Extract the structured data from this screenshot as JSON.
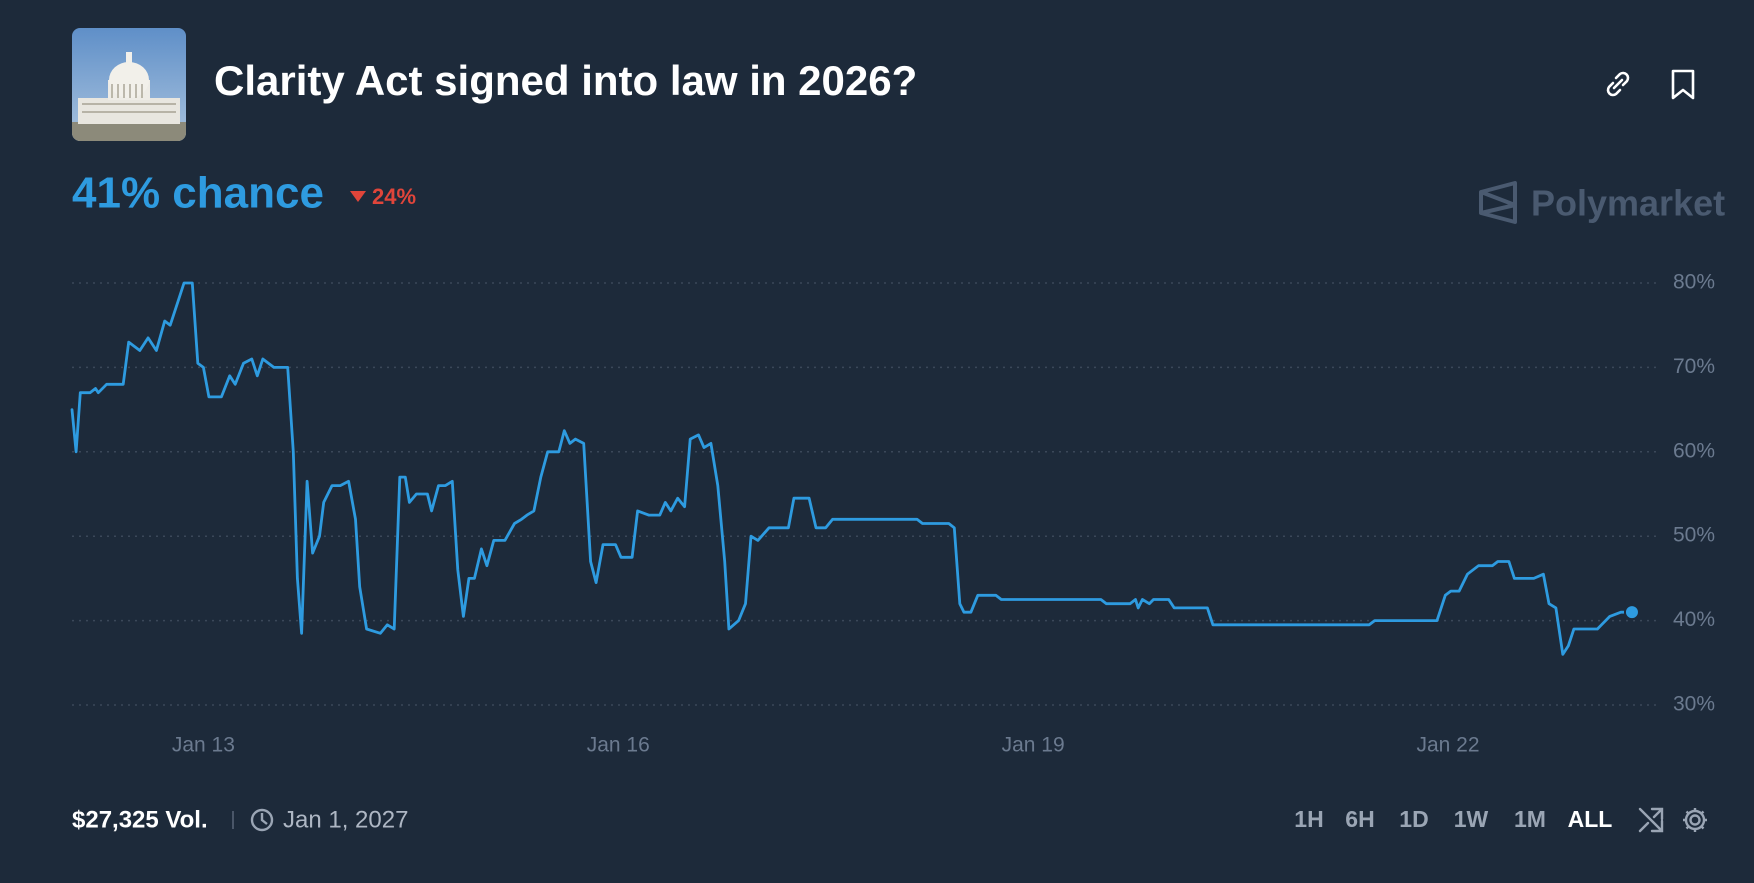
{
  "header": {
    "title": "Clarity Act signed into law in 2026?",
    "probability": "41% chance",
    "change": "24%",
    "brand": "Polymarket"
  },
  "chart_data": {
    "type": "line",
    "color": "#2e9be0",
    "grid": true,
    "x": [
      12.05,
      12.08,
      12.11,
      12.18,
      12.22,
      12.24,
      12.3,
      12.42,
      12.46,
      12.54,
      12.6,
      12.66,
      12.72,
      12.76,
      12.82,
      12.86,
      12.92,
      12.96,
      13.0,
      13.04,
      13.13,
      13.19,
      13.23,
      13.29,
      13.35,
      13.39,
      13.43,
      13.51,
      13.61,
      13.65,
      13.68,
      13.71,
      13.75,
      13.79,
      13.84,
      13.87,
      13.93,
      13.99,
      14.05,
      14.1,
      14.13,
      14.18,
      14.28,
      14.33,
      14.38,
      14.42,
      14.46,
      14.49,
      14.54,
      14.62,
      14.65,
      14.7,
      14.75,
      14.8,
      14.84,
      14.88,
      14.92,
      14.96,
      15.01,
      15.05,
      15.1,
      15.18,
      15.25,
      15.3,
      15.34,
      15.39,
      15.44,
      15.49,
      15.57,
      15.61,
      15.65,
      15.69,
      15.75,
      15.8,
      15.84,
      15.89,
      15.98,
      16.02,
      16.1,
      16.14,
      16.22,
      16.3,
      16.34,
      16.38,
      16.43,
      16.48,
      16.52,
      16.58,
      16.62,
      16.67,
      16.72,
      16.77,
      16.8,
      16.87,
      16.92,
      16.96,
      17.01,
      17.09,
      17.23,
      17.27,
      17.38,
      17.43,
      17.5,
      17.55,
      18.16,
      18.2,
      18.39,
      18.43,
      18.47,
      18.5,
      18.55,
      18.6,
      18.73,
      18.77,
      19.49,
      19.53,
      19.7,
      19.74,
      19.76,
      19.79,
      19.84,
      19.87,
      19.98,
      20.02,
      20.26,
      20.3,
      21.43,
      21.47,
      21.92,
      21.98,
      22.02,
      22.08,
      22.14,
      22.22,
      22.32,
      22.36,
      22.44,
      22.48,
      22.62,
      22.69,
      22.73,
      22.78,
      22.83,
      22.87,
      22.91,
      23.08,
      23.11,
      23.17,
      23.25,
      23.33
    ],
    "values": [
      65,
      60,
      67,
      67,
      67.5,
      67,
      68,
      68,
      73,
      72,
      73.5,
      72,
      75.5,
      75,
      78,
      80,
      80,
      70.5,
      70,
      66.5,
      66.5,
      69,
      68,
      70.5,
      71,
      69,
      71,
      70,
      70,
      60,
      45,
      38.5,
      56.5,
      48,
      50,
      54,
      56,
      56,
      56.5,
      52,
      44,
      39,
      38.5,
      39.5,
      39,
      57,
      57,
      54,
      55,
      55,
      53,
      56,
      56,
      56.5,
      46,
      40.5,
      45,
      45,
      48.5,
      46.5,
      49.5,
      49.5,
      51.5,
      52,
      52.5,
      53,
      57,
      60,
      60,
      62.5,
      61,
      61.5,
      61,
      47,
      44.5,
      49,
      49,
      47.5,
      47.5,
      53,
      52.5,
      52.5,
      54,
      53,
      54.5,
      53.5,
      61.5,
      62,
      60.5,
      61,
      56,
      47,
      39,
      40,
      42,
      50,
      49.5,
      51,
      51,
      54.5,
      54.5,
      51,
      51,
      52,
      52,
      51.5,
      51.5,
      51,
      42,
      41,
      41,
      43,
      43,
      42.5,
      42.5,
      42,
      42,
      42.5,
      41.5,
      42.5,
      42,
      42.5,
      42.5,
      41.5,
      41.5,
      39.5,
      39.5,
      40,
      40,
      43,
      43.5,
      43.5,
      45.5,
      46.5,
      46.5,
      47,
      47,
      45,
      45,
      45.5,
      42,
      41.5,
      36,
      37,
      39,
      39,
      39.5,
      40.5,
      41,
      41
    ],
    "xlim": [
      12.05,
      23.54
    ],
    "xticks": [
      {
        "value": 13,
        "label": "Jan 13"
      },
      {
        "value": 16,
        "label": "Jan 16"
      },
      {
        "value": 19,
        "label": "Jan 19"
      },
      {
        "value": 22,
        "label": "Jan 22"
      }
    ],
    "ylim": [
      30,
      80
    ],
    "yticks": [
      {
        "value": 30,
        "label": "30%"
      },
      {
        "value": 40,
        "label": "40%"
      },
      {
        "value": 50,
        "label": "50%"
      },
      {
        "value": 60,
        "label": "60%"
      },
      {
        "value": 70,
        "label": "70%"
      },
      {
        "value": 80,
        "label": "80%"
      }
    ]
  },
  "footer": {
    "volume": "$27,325 Vol.",
    "end_date": "Jan 1, 2027",
    "ranges": [
      "1H",
      "6H",
      "1D",
      "1W",
      "1M",
      "ALL"
    ],
    "active_range": "ALL"
  }
}
